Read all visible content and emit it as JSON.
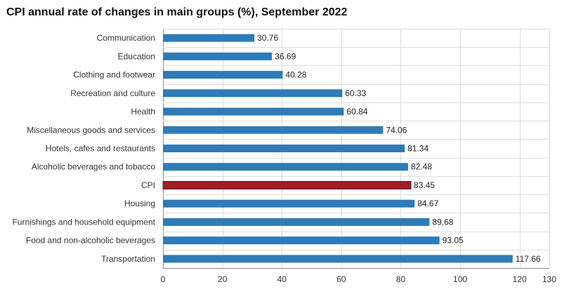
{
  "chart_data": {
    "type": "bar",
    "orientation": "horizontal",
    "title": "CPI annual rate of changes in main groups (%), September 2022",
    "categories": [
      "Communication",
      "Education",
      "Clothing and footwear",
      "Recreation and culture",
      "Health",
      "Miscellaneous goods and services",
      "Hotels, cafes and restaurants",
      "Alcoholic beverages and tobacco",
      "CPI",
      "Housing",
      "Furnishings and household equipment",
      "Food and non-alcoholic beverages",
      "Transportation"
    ],
    "values": [
      30.76,
      36.69,
      40.28,
      60.33,
      60.84,
      74.06,
      81.34,
      82.48,
      83.45,
      84.67,
      89.68,
      93.05,
      117.66
    ],
    "value_labels": [
      "30.76",
      "36.69",
      "40.28",
      "60.33",
      "60.84",
      "74.06",
      "81.34",
      "82.48",
      "83.45",
      "84.67",
      "89.68",
      "93.05",
      "117.66"
    ],
    "highlight_category": "CPI",
    "xlim": [
      0,
      130
    ],
    "x_ticks": [
      0,
      20,
      40,
      60,
      80,
      100,
      120,
      130
    ],
    "x_tick_labels": [
      "0",
      "20",
      "40",
      "60",
      "80",
      "100",
      "120",
      "130"
    ],
    "xlabel": "",
    "ylabel": "",
    "grid": true,
    "legend": "none",
    "colors": {
      "bar": "#2e7bb8",
      "highlight": "#a51c24",
      "highlight_outline": "#333333"
    }
  }
}
